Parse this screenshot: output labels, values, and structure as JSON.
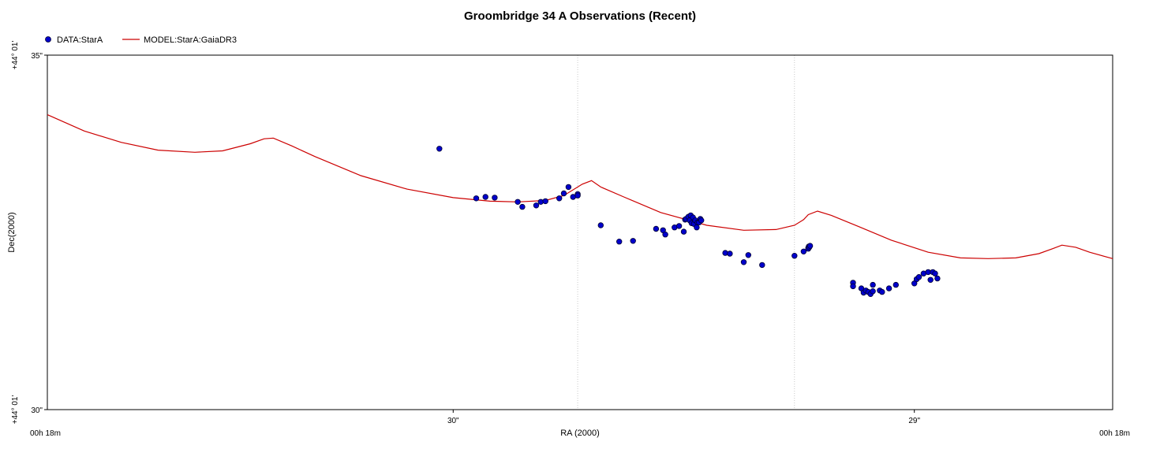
{
  "chart_data": {
    "type": "scatter",
    "title": "Groombridge 34 A Observations (Recent)",
    "xlabel": "RA (2000)",
    "ylabel": "Dec(2000)",
    "x_axis_note": "RA seconds, 00h 18m + x (axis decreases to the right)",
    "y_axis_note": "Dec arcseconds, +44° 01' + y",
    "xlim": [
      30.88,
      28.57
    ],
    "ylim": [
      30,
      35
    ],
    "x_tick_labels": [
      {
        "value": 30.88,
        "label": "00h 18m"
      },
      {
        "value": 30.0,
        "label": "30\""
      },
      {
        "value": 29.0,
        "label": "29\""
      },
      {
        "value": 28.57,
        "label": "00h 18m"
      }
    ],
    "y_tick_labels": [
      {
        "value": 35,
        "main": "+44° 01'",
        "sub": "35\""
      },
      {
        "value": 30,
        "main": "+44° 01'",
        "sub": "30\""
      }
    ],
    "x_gridlines": [
      29.73,
      29.26
    ],
    "legend": {
      "position": "top-left",
      "items": [
        {
          "label": "DATA:StarA",
          "kind": "marker",
          "color": "#0000cc"
        },
        {
          "label": "MODEL:StarA:GaiaDR3",
          "kind": "line",
          "color": "#cc0000"
        }
      ]
    },
    "series": [
      {
        "name": "DATA:StarA",
        "kind": "scatter",
        "color": "#0000cc",
        "points": [
          [
            30.03,
            33.68
          ],
          [
            29.95,
            32.98
          ],
          [
            29.93,
            33.0
          ],
          [
            29.91,
            32.99
          ],
          [
            29.86,
            32.93
          ],
          [
            29.85,
            32.86
          ],
          [
            29.82,
            32.88
          ],
          [
            29.81,
            32.93
          ],
          [
            29.8,
            32.94
          ],
          [
            29.77,
            32.98
          ],
          [
            29.76,
            33.05
          ],
          [
            29.75,
            33.14
          ],
          [
            29.74,
            33.0
          ],
          [
            29.73,
            33.04
          ],
          [
            29.73,
            33.02
          ],
          [
            29.68,
            32.6
          ],
          [
            29.64,
            32.37
          ],
          [
            29.61,
            32.38
          ],
          [
            29.56,
            32.55
          ],
          [
            29.545,
            32.53
          ],
          [
            29.54,
            32.47
          ],
          [
            29.52,
            32.57
          ],
          [
            29.51,
            32.59
          ],
          [
            29.5,
            32.51
          ],
          [
            29.497,
            32.68
          ],
          [
            29.495,
            32.69
          ],
          [
            29.49,
            32.72
          ],
          [
            29.487,
            32.67
          ],
          [
            29.485,
            32.74
          ],
          [
            29.483,
            32.63
          ],
          [
            29.48,
            32.71
          ],
          [
            29.478,
            32.62
          ],
          [
            29.475,
            32.67
          ],
          [
            29.472,
            32.57
          ],
          [
            29.47,
            32.64
          ],
          [
            29.467,
            32.64
          ],
          [
            29.464,
            32.69
          ],
          [
            29.462,
            32.67
          ],
          [
            29.41,
            32.21
          ],
          [
            29.4,
            32.2
          ],
          [
            29.37,
            32.08
          ],
          [
            29.36,
            32.18
          ],
          [
            29.33,
            32.04
          ],
          [
            29.26,
            32.17
          ],
          [
            29.24,
            32.23
          ],
          [
            29.23,
            32.28
          ],
          [
            29.23,
            32.27
          ],
          [
            29.229,
            32.3
          ],
          [
            29.228,
            32.29
          ],
          [
            29.226,
            32.31
          ],
          [
            29.133,
            31.79
          ],
          [
            29.133,
            31.74
          ],
          [
            29.115,
            31.71
          ],
          [
            29.11,
            31.65
          ],
          [
            29.105,
            31.68
          ],
          [
            29.1,
            31.66
          ],
          [
            29.095,
            31.63
          ],
          [
            29.09,
            31.76
          ],
          [
            29.09,
            31.67
          ],
          [
            29.075,
            31.68
          ],
          [
            29.07,
            31.66
          ],
          [
            29.055,
            31.71
          ],
          [
            29.04,
            31.76
          ],
          [
            29.0,
            31.78
          ],
          [
            28.995,
            31.84
          ],
          [
            28.99,
            31.87
          ],
          [
            28.98,
            31.92
          ],
          [
            28.97,
            31.94
          ],
          [
            28.965,
            31.83
          ],
          [
            28.96,
            31.94
          ],
          [
            28.955,
            31.92
          ],
          [
            28.95,
            31.85
          ]
        ]
      },
      {
        "name": "MODEL:StarA:GaiaDR3",
        "kind": "line",
        "color": "#cc0000",
        "points": [
          [
            30.88,
            34.16
          ],
          [
            30.8,
            33.93
          ],
          [
            30.72,
            33.77
          ],
          [
            30.64,
            33.66
          ],
          [
            30.56,
            33.63
          ],
          [
            30.5,
            33.65
          ],
          [
            30.44,
            33.75
          ],
          [
            30.41,
            33.82
          ],
          [
            30.39,
            33.83
          ],
          [
            30.35,
            33.72
          ],
          [
            30.3,
            33.57
          ],
          [
            30.2,
            33.3
          ],
          [
            30.1,
            33.11
          ],
          [
            30.0,
            32.99
          ],
          [
            29.92,
            32.94
          ],
          [
            29.86,
            32.93
          ],
          [
            29.8,
            32.95
          ],
          [
            29.76,
            33.02
          ],
          [
            29.72,
            33.18
          ],
          [
            29.7,
            33.23
          ],
          [
            29.68,
            33.14
          ],
          [
            29.63,
            33.0
          ],
          [
            29.55,
            32.78
          ],
          [
            29.45,
            32.6
          ],
          [
            29.37,
            32.53
          ],
          [
            29.3,
            32.54
          ],
          [
            29.26,
            32.6
          ],
          [
            29.24,
            32.68
          ],
          [
            29.23,
            32.75
          ],
          [
            29.21,
            32.8
          ],
          [
            29.18,
            32.74
          ],
          [
            29.12,
            32.58
          ],
          [
            29.05,
            32.39
          ],
          [
            28.97,
            32.22
          ],
          [
            28.9,
            32.14
          ],
          [
            28.84,
            32.13
          ],
          [
            28.78,
            32.14
          ],
          [
            28.73,
            32.2
          ],
          [
            28.7,
            32.27
          ],
          [
            28.68,
            32.32
          ],
          [
            28.65,
            32.29
          ],
          [
            28.62,
            32.22
          ],
          [
            28.57,
            32.13
          ]
        ]
      }
    ]
  }
}
